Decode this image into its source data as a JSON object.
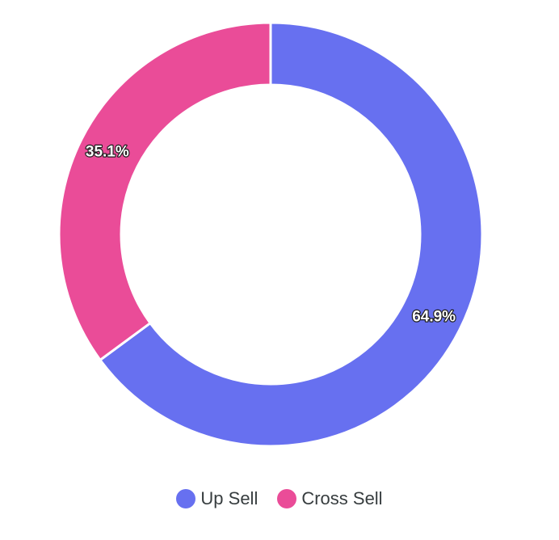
{
  "chart_data": {
    "type": "pie",
    "variant": "donut",
    "title": "",
    "categories": [
      "Up Sell",
      "Cross Sell"
    ],
    "values": [
      64.9,
      35.1
    ],
    "data_labels": [
      "64.9%",
      "35.1%"
    ],
    "colors": [
      "#6770f0",
      "#ea4c98"
    ],
    "legend": {
      "position": "bottom-center",
      "items": [
        {
          "label": "Up Sell",
          "color": "#6770f0"
        },
        {
          "label": "Cross Sell",
          "color": "#ea4c98"
        }
      ]
    }
  }
}
